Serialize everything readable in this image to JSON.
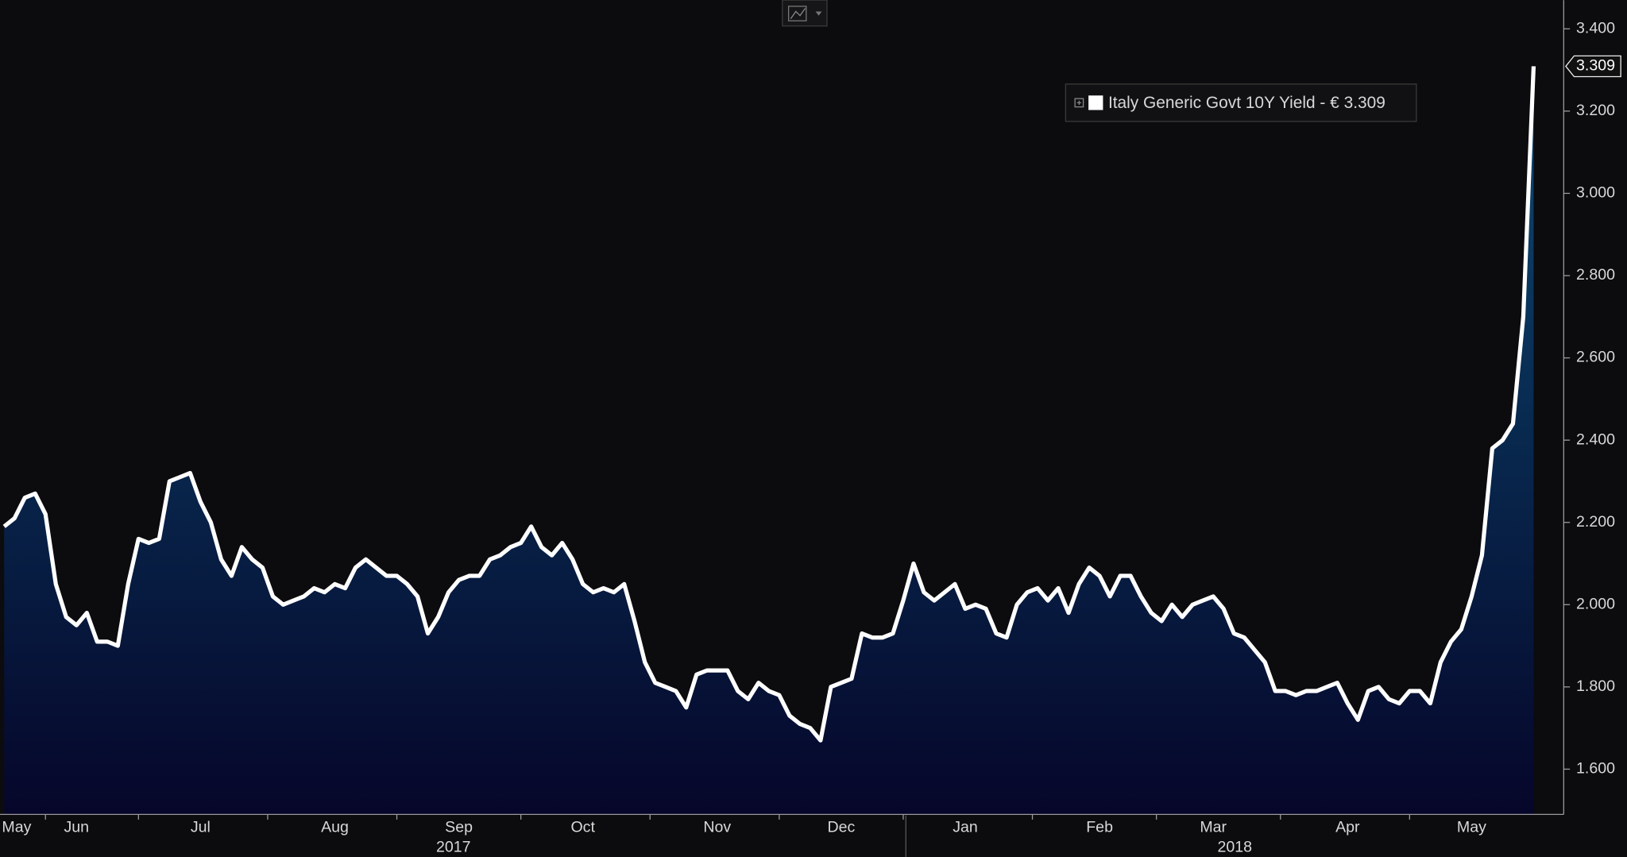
{
  "chart_data": {
    "type": "line",
    "series": [
      {
        "name": "Italy Generic Govt 10Y Yield - € 3.309",
        "color": "#ffffff",
        "values": [
          2.19,
          2.21,
          2.26,
          2.27,
          2.22,
          2.05,
          1.97,
          1.95,
          1.98,
          1.91,
          1.91,
          1.9,
          2.05,
          2.16,
          2.15,
          2.16,
          2.3,
          2.31,
          2.32,
          2.25,
          2.2,
          2.11,
          2.07,
          2.14,
          2.11,
          2.09,
          2.02,
          2.0,
          2.01,
          2.02,
          2.04,
          2.03,
          2.05,
          2.04,
          2.09,
          2.11,
          2.09,
          2.07,
          2.07,
          2.05,
          2.02,
          1.93,
          1.97,
          2.03,
          2.06,
          2.07,
          2.07,
          2.11,
          2.12,
          2.14,
          2.15,
          2.19,
          2.14,
          2.12,
          2.15,
          2.11,
          2.05,
          2.03,
          2.04,
          2.03,
          2.05,
          1.96,
          1.86,
          1.81,
          1.8,
          1.79,
          1.75,
          1.83,
          1.84,
          1.84,
          1.84,
          1.79,
          1.77,
          1.81,
          1.79,
          1.78,
          1.73,
          1.71,
          1.7,
          1.67,
          1.8,
          1.81,
          1.82,
          1.93,
          1.92,
          1.92,
          1.93,
          2.01,
          2.1,
          2.03,
          2.01,
          2.03,
          2.05,
          1.99,
          2.0,
          1.99,
          1.93,
          1.92,
          2.0,
          2.03,
          2.04,
          2.01,
          2.04,
          1.98,
          2.05,
          2.09,
          2.07,
          2.02,
          2.07,
          2.07,
          2.02,
          1.98,
          1.96,
          2.0,
          1.97,
          2.0,
          2.01,
          2.02,
          1.99,
          1.93,
          1.92,
          1.89,
          1.86,
          1.79,
          1.79,
          1.78,
          1.79,
          1.79,
          1.8,
          1.81,
          1.76,
          1.72,
          1.79,
          1.8,
          1.77,
          1.76,
          1.79,
          1.79,
          1.76,
          1.86,
          1.91,
          1.94,
          2.02,
          2.12,
          2.38,
          2.4,
          2.44,
          2.7,
          3.309
        ]
      }
    ],
    "categories": [
      null,
      "May",
      null,
      null,
      null,
      null,
      null,
      "Jun",
      null,
      null,
      null,
      null,
      null,
      null,
      null,
      null,
      null,
      null,
      null,
      "Jul",
      null,
      null,
      null,
      null,
      null,
      null,
      null,
      null,
      null,
      null,
      null,
      null,
      "Aug",
      null,
      null,
      null,
      null,
      null,
      null,
      null,
      null,
      null,
      null,
      null,
      "Sep",
      null,
      null,
      null,
      null,
      null,
      null,
      null,
      null,
      null,
      null,
      null,
      "Oct",
      null,
      null,
      null,
      null,
      null,
      null,
      null,
      null,
      null,
      null,
      null,
      null,
      "Nov",
      null,
      null,
      null,
      null,
      null,
      null,
      null,
      null,
      null,
      null,
      null,
      "Dec",
      null,
      null,
      null,
      null,
      null,
      null,
      null,
      null,
      null,
      null,
      null,
      "Jan",
      null,
      null,
      null,
      null,
      null,
      null,
      null,
      null,
      null,
      null,
      null,
      null,
      "Feb",
      null,
      null,
      null,
      null,
      null,
      null,
      null,
      null,
      null,
      null,
      "Mar",
      null,
      null,
      null,
      null,
      null,
      null,
      null,
      null,
      null,
      null,
      null,
      null,
      "Apr",
      null,
      null,
      null,
      null,
      null,
      null,
      null,
      null,
      null,
      null,
      null,
      "May",
      null,
      null,
      null,
      null,
      null,
      null
    ],
    "year_labels": [
      "2017",
      "2018"
    ],
    "ylim": [
      1.49,
      3.47
    ],
    "yticks": [
      {
        "value": 1.6,
        "label": "1.600"
      },
      {
        "value": 1.8,
        "label": "1.800"
      },
      {
        "value": 2.0,
        "label": "2.000"
      },
      {
        "value": 2.2,
        "label": "2.200"
      },
      {
        "value": 2.4,
        "label": "2.400"
      },
      {
        "value": 2.6,
        "label": "2.600"
      },
      {
        "value": 2.8,
        "label": "2.800"
      },
      {
        "value": 3.0,
        "label": "3.000"
      },
      {
        "value": 3.2,
        "label": "3.200"
      },
      {
        "value": 3.4,
        "label": "3.400"
      }
    ],
    "y_axis_side": "right",
    "grid": false
  }
}
